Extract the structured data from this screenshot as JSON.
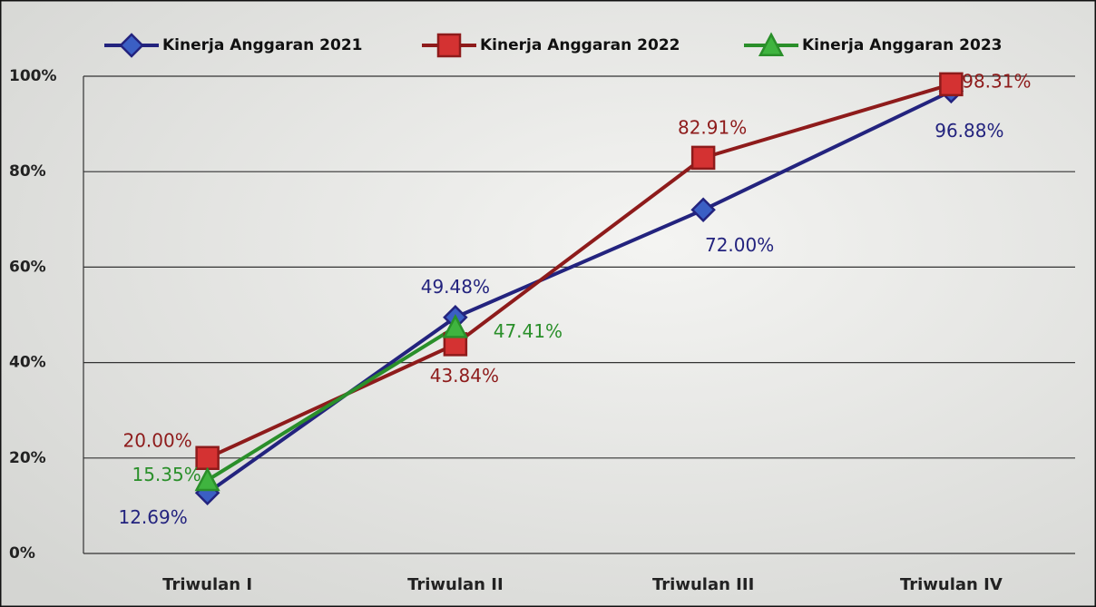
{
  "chart_data": {
    "type": "line",
    "categories": [
      "Triwulan I",
      "Triwulan II",
      "Triwulan III",
      "Triwulan IV"
    ],
    "series": [
      {
        "name": "Kinerja Anggaran 2021",
        "color": "#23237e",
        "marker": "diamond",
        "values": [
          12.69,
          49.48,
          72.0,
          96.88
        ],
        "value_labels": [
          "12.69%",
          "49.48%",
          "72.00%",
          "96.88%"
        ]
      },
      {
        "name": "Kinerja Anggaran 2022",
        "color": "#8e1b1b",
        "marker": "square",
        "values": [
          20.0,
          43.84,
          82.91,
          98.31
        ],
        "value_labels": [
          "20.00%",
          "43.84%",
          "82.91%",
          "98.31%"
        ]
      },
      {
        "name": "Kinerja Anggaran 2023",
        "color": "#2a8f2a",
        "marker": "triangle",
        "values": [
          15.35,
          47.41,
          null,
          null
        ],
        "value_labels": [
          "15.35%",
          "47.41%",
          null,
          null
        ]
      }
    ],
    "ylim": [
      0,
      100
    ],
    "yticks": [
      {
        "value": 0,
        "label": "0%"
      },
      {
        "value": 20,
        "label": "20%"
      },
      {
        "value": 40,
        "label": "40%"
      },
      {
        "value": 60,
        "label": "60%"
      },
      {
        "value": 80,
        "label": "80%"
      },
      {
        "value": 100,
        "label": "100%"
      }
    ],
    "grid": true,
    "legend": "top"
  }
}
